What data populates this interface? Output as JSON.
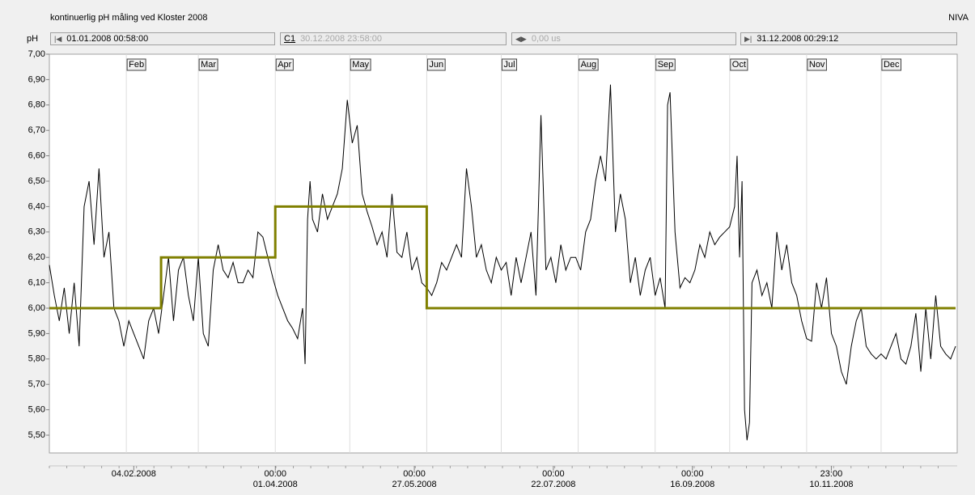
{
  "chart_data": {
    "type": "line",
    "title": "kontinuerlig pH måling ved Kloster 2008",
    "brand": "NIVA",
    "ylabel": "pH",
    "toolbar": {
      "start": "01.01.2008 00:58:00",
      "cursor": "C1",
      "cursor_time": "30.12.2008 23:58:00",
      "delta": "0,00 us",
      "end": "31.12.2008 00:29:12"
    },
    "xlim": [
      "2008-01-01",
      "2008-12-31"
    ],
    "ylim": [
      5.43,
      7.0
    ],
    "yticks": [
      {
        "value": 5.5,
        "label": "5,50"
      },
      {
        "value": 5.6,
        "label": "5,60"
      },
      {
        "value": 5.7,
        "label": "5,70"
      },
      {
        "value": 5.8,
        "label": "5,80"
      },
      {
        "value": 5.9,
        "label": "5,90"
      },
      {
        "value": 6.0,
        "label": "6,00"
      },
      {
        "value": 6.1,
        "label": "6,10"
      },
      {
        "value": 6.2,
        "label": "6,20"
      },
      {
        "value": 6.3,
        "label": "6,30"
      },
      {
        "value": 6.4,
        "label": "6,40"
      },
      {
        "value": 6.5,
        "label": "6,50"
      },
      {
        "value": 6.6,
        "label": "6,60"
      },
      {
        "value": 6.7,
        "label": "6,70"
      },
      {
        "value": 6.8,
        "label": "6,80"
      },
      {
        "value": 6.9,
        "label": "6,90"
      },
      {
        "value": 7.0,
        "label": "7,00"
      }
    ],
    "xticks": [
      {
        "value": "2008-02-04",
        "label": "04.02.2008"
      },
      {
        "value": "2008-04-01",
        "label": "00:00\n01.04.2008"
      },
      {
        "value": "2008-05-27",
        "label": "00:00\n27.05.2008"
      },
      {
        "value": "2008-07-22",
        "label": "00:00\n22.07.2008"
      },
      {
        "value": "2008-09-16",
        "label": "00:00\n16.09.2008"
      },
      {
        "value": "2008-11-10T23:00",
        "label": "23:00\n10.11.2008"
      }
    ],
    "month_markers": [
      {
        "value": "2008-02-01",
        "label": "Feb"
      },
      {
        "value": "2008-03-01",
        "label": "Mar"
      },
      {
        "value": "2008-04-01",
        "label": "Apr"
      },
      {
        "value": "2008-05-01",
        "label": "May"
      },
      {
        "value": "2008-06-01",
        "label": "Jun"
      },
      {
        "value": "2008-07-01",
        "label": "Jul"
      },
      {
        "value": "2008-08-01",
        "label": "Aug"
      },
      {
        "value": "2008-09-01",
        "label": "Sep"
      },
      {
        "value": "2008-10-01",
        "label": "Oct"
      },
      {
        "value": "2008-11-01",
        "label": "Nov"
      },
      {
        "value": "2008-12-01",
        "label": "Dec"
      }
    ],
    "series": [
      {
        "color": "#000000",
        "width": 1,
        "x": [
          "2008-01-01",
          "2008-01-03",
          "2008-01-05",
          "2008-01-07",
          "2008-01-09",
          "2008-01-11",
          "2008-01-13",
          "2008-01-15",
          "2008-01-17",
          "2008-01-19",
          "2008-01-21",
          "2008-01-23",
          "2008-01-25",
          "2008-01-27",
          "2008-01-29",
          "2008-01-31",
          "2008-02-02",
          "2008-02-04",
          "2008-02-06",
          "2008-02-08",
          "2008-02-10",
          "2008-02-12",
          "2008-02-14",
          "2008-02-16",
          "2008-02-18",
          "2008-02-20",
          "2008-02-22",
          "2008-02-24",
          "2008-02-26",
          "2008-02-28",
          "2008-03-01",
          "2008-03-03",
          "2008-03-05",
          "2008-03-07",
          "2008-03-09",
          "2008-03-11",
          "2008-03-13",
          "2008-03-15",
          "2008-03-17",
          "2008-03-19",
          "2008-03-21",
          "2008-03-23",
          "2008-03-25",
          "2008-03-27",
          "2008-03-29",
          "2008-03-31",
          "2008-04-02",
          "2008-04-04",
          "2008-04-06",
          "2008-04-08",
          "2008-04-10",
          "2008-04-12",
          "2008-04-13",
          "2008-04-14",
          "2008-04-15",
          "2008-04-16",
          "2008-04-18",
          "2008-04-20",
          "2008-04-22",
          "2008-04-24",
          "2008-04-26",
          "2008-04-28",
          "2008-04-30",
          "2008-05-02",
          "2008-05-04",
          "2008-05-06",
          "2008-05-08",
          "2008-05-10",
          "2008-05-12",
          "2008-05-14",
          "2008-05-16",
          "2008-05-18",
          "2008-05-20",
          "2008-05-22",
          "2008-05-24",
          "2008-05-26",
          "2008-05-28",
          "2008-05-30",
          "2008-06-01",
          "2008-06-03",
          "2008-06-05",
          "2008-06-07",
          "2008-06-09",
          "2008-06-11",
          "2008-06-13",
          "2008-06-15",
          "2008-06-17",
          "2008-06-19",
          "2008-06-21",
          "2008-06-23",
          "2008-06-25",
          "2008-06-27",
          "2008-06-29",
          "2008-07-01",
          "2008-07-03",
          "2008-07-05",
          "2008-07-07",
          "2008-07-09",
          "2008-07-11",
          "2008-07-13",
          "2008-07-15",
          "2008-07-17",
          "2008-07-19",
          "2008-07-21",
          "2008-07-23",
          "2008-07-25",
          "2008-07-27",
          "2008-07-29",
          "2008-07-31",
          "2008-08-02",
          "2008-08-04",
          "2008-08-06",
          "2008-08-08",
          "2008-08-10",
          "2008-08-12",
          "2008-08-14",
          "2008-08-16",
          "2008-08-18",
          "2008-08-20",
          "2008-08-22",
          "2008-08-24",
          "2008-08-26",
          "2008-08-28",
          "2008-08-30",
          "2008-09-01",
          "2008-09-03",
          "2008-09-05",
          "2008-09-06",
          "2008-09-07",
          "2008-09-09",
          "2008-09-11",
          "2008-09-13",
          "2008-09-15",
          "2008-09-17",
          "2008-09-19",
          "2008-09-21",
          "2008-09-23",
          "2008-09-25",
          "2008-09-27",
          "2008-09-29",
          "2008-10-01",
          "2008-10-03",
          "2008-10-04",
          "2008-10-05",
          "2008-10-06",
          "2008-10-07",
          "2008-10-08",
          "2008-10-09",
          "2008-10-10",
          "2008-10-12",
          "2008-10-14",
          "2008-10-16",
          "2008-10-18",
          "2008-10-20",
          "2008-10-22",
          "2008-10-24",
          "2008-10-26",
          "2008-10-28",
          "2008-10-30",
          "2008-11-01",
          "2008-11-03",
          "2008-11-05",
          "2008-11-07",
          "2008-11-09",
          "2008-11-11",
          "2008-11-13",
          "2008-11-15",
          "2008-11-17",
          "2008-11-19",
          "2008-11-21",
          "2008-11-23",
          "2008-11-25",
          "2008-11-27",
          "2008-11-29",
          "2008-12-01",
          "2008-12-03",
          "2008-12-05",
          "2008-12-07",
          "2008-12-09",
          "2008-12-11",
          "2008-12-13",
          "2008-12-15",
          "2008-12-17",
          "2008-12-19",
          "2008-12-21",
          "2008-12-23",
          "2008-12-25",
          "2008-12-27",
          "2008-12-29",
          "2008-12-31"
        ],
        "values": [
          6.17,
          6.05,
          5.95,
          6.08,
          5.9,
          6.1,
          5.85,
          6.4,
          6.5,
          6.25,
          6.55,
          6.2,
          6.3,
          6.0,
          5.95,
          5.85,
          5.95,
          5.9,
          5.85,
          5.8,
          5.95,
          6.0,
          5.9,
          6.05,
          6.2,
          5.95,
          6.15,
          6.2,
          6.05,
          5.95,
          6.2,
          5.9,
          5.85,
          6.15,
          6.25,
          6.15,
          6.12,
          6.18,
          6.1,
          6.1,
          6.15,
          6.12,
          6.3,
          6.28,
          6.2,
          6.12,
          6.05,
          6.0,
          5.95,
          5.92,
          5.88,
          6.0,
          5.78,
          6.35,
          6.5,
          6.35,
          6.3,
          6.45,
          6.35,
          6.4,
          6.45,
          6.55,
          6.82,
          6.65,
          6.72,
          6.45,
          6.38,
          6.32,
          6.25,
          6.3,
          6.2,
          6.45,
          6.22,
          6.2,
          6.3,
          6.15,
          6.2,
          6.1,
          6.08,
          6.05,
          6.1,
          6.18,
          6.15,
          6.2,
          6.25,
          6.2,
          6.55,
          6.4,
          6.2,
          6.25,
          6.15,
          6.1,
          6.2,
          6.15,
          6.18,
          6.05,
          6.2,
          6.1,
          6.2,
          6.3,
          6.05,
          6.76,
          6.15,
          6.2,
          6.1,
          6.25,
          6.15,
          6.2,
          6.2,
          6.15,
          6.3,
          6.35,
          6.5,
          6.6,
          6.5,
          6.88,
          6.3,
          6.45,
          6.35,
          6.1,
          6.2,
          6.05,
          6.15,
          6.2,
          6.05,
          6.12,
          6.0,
          6.8,
          6.85,
          6.3,
          6.08,
          6.12,
          6.1,
          6.15,
          6.25,
          6.2,
          6.3,
          6.25,
          6.28,
          6.3,
          6.32,
          6.4,
          6.6,
          6.2,
          6.5,
          5.6,
          5.48,
          5.55,
          6.1,
          6.15,
          6.05,
          6.1,
          6.0,
          6.3,
          6.15,
          6.25,
          6.1,
          6.05,
          5.95,
          5.88,
          5.87,
          6.1,
          6.0,
          6.12,
          5.9,
          5.85,
          5.75,
          5.7,
          5.85,
          5.95,
          6.0,
          5.85,
          5.82,
          5.8,
          5.82,
          5.8,
          5.85,
          5.9,
          5.8,
          5.78,
          5.85,
          5.98,
          5.75,
          6.0,
          5.8,
          6.05,
          5.85,
          5.82,
          5.8,
          5.85
        ]
      },
      {
        "color": "#808000",
        "width": 3,
        "x": [
          "2008-01-01",
          "2008-02-15",
          "2008-02-15",
          "2008-04-01",
          "2008-04-01",
          "2008-06-01",
          "2008-06-01",
          "2008-12-31"
        ],
        "values": [
          6.0,
          6.0,
          6.2,
          6.2,
          6.4,
          6.4,
          6.0,
          6.0
        ]
      }
    ]
  }
}
